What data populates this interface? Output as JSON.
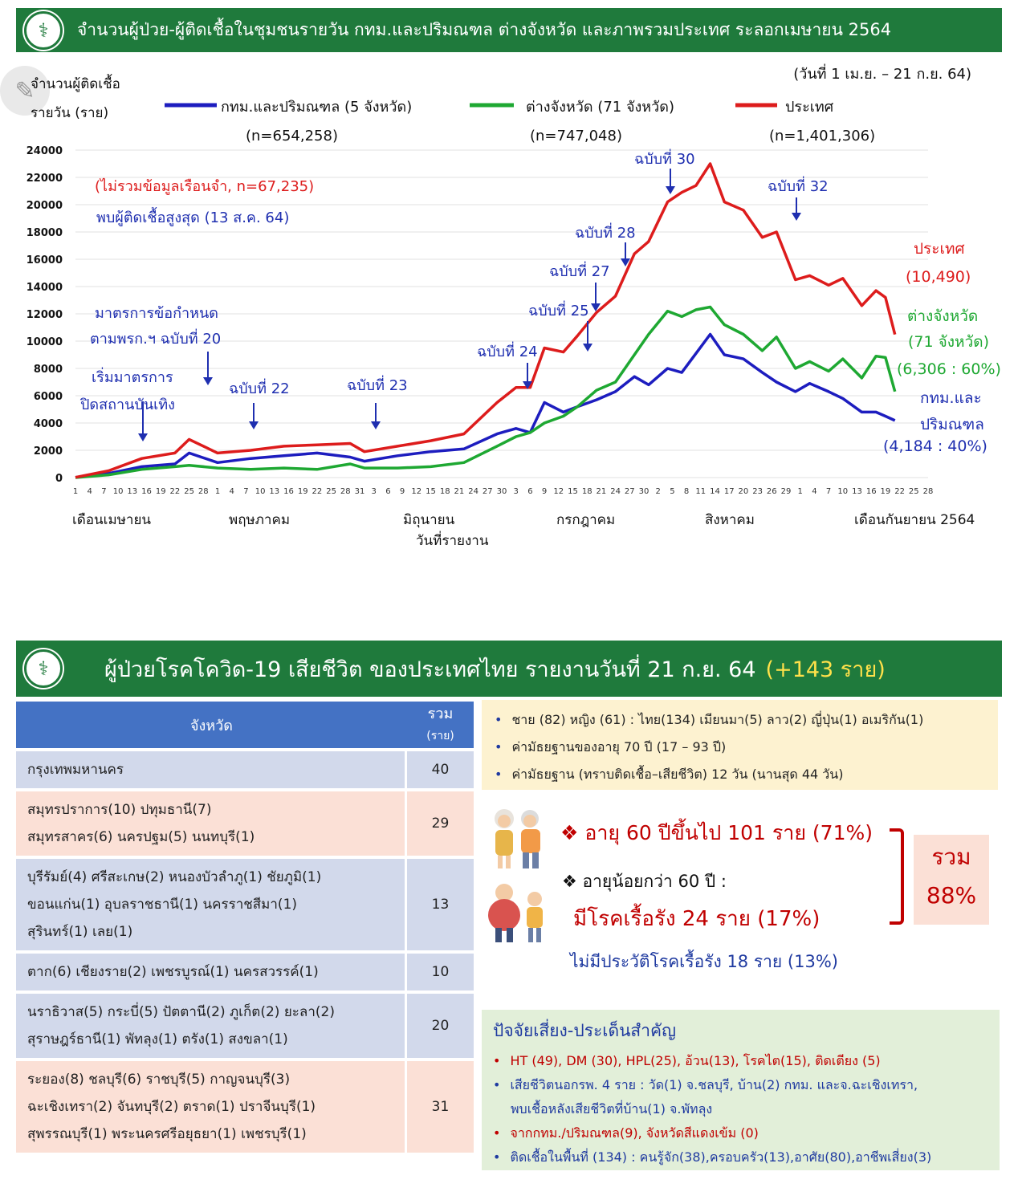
{
  "header1": {
    "title": "จำนวนผู้ป่วย-ผู้ติดเชื้อในชุมชนรายวัน กทม.และปริมณฑล ต่างจังหวัด และภาพรวมประเทศ ระลอกเมษายน 2564"
  },
  "header2": {
    "title": "ผู้ป่วยโรคโควิด-19 เสียชีวิต ของประเทศไทย รายงานวันที่ 21 ก.ย. 64",
    "highlight": "(+143 ราย)"
  },
  "logo_glyph": "⚕",
  "edit_glyph": "✎",
  "chart_data": {
    "type": "line",
    "ylabel_line1": "จำนวนผู้ติดเชื้อ",
    "ylabel_line2": "รายวัน (ราย)",
    "xlabel": "วันที่รายงาน",
    "date_range": "(วันที่ 1 เม.ย. – 21 ก.ย. 64)",
    "ylim": [
      0,
      24000
    ],
    "yticks": [
      0,
      2000,
      4000,
      6000,
      8000,
      10000,
      12000,
      14000,
      16000,
      18000,
      20000,
      22000,
      24000
    ],
    "x_range": [
      "2021-04-01",
      "2021-09-28"
    ],
    "x_tick_labels": [
      "1",
      "4",
      "7",
      "10",
      "13",
      "16",
      "19",
      "22",
      "25",
      "28",
      "1",
      "4",
      "7",
      "10",
      "13",
      "16",
      "19",
      "22",
      "25",
      "28",
      "31",
      "3",
      "6",
      "9",
      "12",
      "15",
      "18",
      "21",
      "24",
      "27",
      "30",
      "3",
      "6",
      "9",
      "12",
      "15",
      "18",
      "21",
      "24",
      "27",
      "30",
      "2",
      "5",
      "8",
      "11",
      "14",
      "17",
      "20",
      "23",
      "26",
      "29",
      "1",
      "4",
      "7",
      "10",
      "13",
      "16",
      "19",
      "22",
      "25",
      "28"
    ],
    "month_labels": [
      "เดือนเมษายน",
      "พฤษภาคม",
      "มิถุนายน",
      "กรกฎาคม",
      "สิงหาคม",
      "เดือนกันยายน 2564"
    ],
    "x": [
      "2021-04-01",
      "2021-04-08",
      "2021-04-15",
      "2021-04-22",
      "2021-04-25",
      "2021-05-01",
      "2021-05-08",
      "2021-05-15",
      "2021-05-22",
      "2021-05-29",
      "2021-06-01",
      "2021-06-08",
      "2021-06-15",
      "2021-06-22",
      "2021-06-29",
      "2021-07-03",
      "2021-07-06",
      "2021-07-09",
      "2021-07-13",
      "2021-07-16",
      "2021-07-20",
      "2021-07-24",
      "2021-07-28",
      "2021-07-31",
      "2021-08-04",
      "2021-08-07",
      "2021-08-10",
      "2021-08-13",
      "2021-08-16",
      "2021-08-20",
      "2021-08-24",
      "2021-08-27",
      "2021-08-31",
      "2021-09-03",
      "2021-09-07",
      "2021-09-10",
      "2021-09-14",
      "2021-09-17",
      "2021-09-19",
      "2021-09-21"
    ],
    "series": [
      {
        "name": "กทม.และปริมณฑล (5 จังหวัด)",
        "n_label": "(n=654,258)",
        "color": "#1d1dbf",
        "values": [
          20,
          300,
          800,
          1000,
          1800,
          1100,
          1400,
          1600,
          1800,
          1500,
          1200,
          1600,
          1900,
          2100,
          3200,
          3600,
          3300,
          5500,
          4800,
          5200,
          5700,
          6300,
          7400,
          6800,
          8000,
          7700,
          9100,
          10500,
          9000,
          8700,
          7700,
          7000,
          6300,
          6900,
          6300,
          5800,
          4800,
          4800,
          4500,
          4184
        ]
      },
      {
        "name": "ต่างจังหวัด (71 จังหวัด)",
        "n_label": "(n=747,048)",
        "color": "#1ea832",
        "values": [
          0,
          200,
          600,
          800,
          900,
          700,
          600,
          700,
          600,
          1000,
          700,
          700,
          800,
          1100,
          2300,
          3000,
          3300,
          4000,
          4500,
          5200,
          6400,
          7000,
          9000,
          10500,
          12200,
          11800,
          12300,
          12500,
          11200,
          10500,
          9300,
          10300,
          8000,
          8500,
          7800,
          8700,
          7300,
          8900,
          8800,
          6306
        ]
      },
      {
        "name": "ประเทศ",
        "n_label": "(n=1,401,306)",
        "color": "#dd1c1c",
        "values": [
          20,
          500,
          1400,
          1800,
          2800,
          1800,
          2000,
          2300,
          2400,
          2500,
          1900,
          2300,
          2700,
          3200,
          5500,
          6600,
          6600,
          9500,
          9200,
          10400,
          12100,
          13300,
          16400,
          17300,
          20200,
          20900,
          21400,
          23000,
          20200,
          19600,
          17600,
          18000,
          14500,
          14800,
          14100,
          14600,
          12600,
          13700,
          13200,
          10490
        ]
      }
    ],
    "annotations": [
      {
        "text": "(ไม่รวมข้อมูลเรือนจำ, n=67,235)",
        "color": "red"
      },
      {
        "text": "พบผู้ติดเชื้อสูงสุด (13 ส.ค. 64)",
        "color": "blue"
      },
      {
        "text": "มาตรการข้อกำหนด",
        "color": "blue"
      },
      {
        "text": "ตามพรก.ฯ ฉบับที่ 20",
        "color": "blue"
      },
      {
        "text": "เริ่มมาตรการ",
        "color": "blue"
      },
      {
        "text": "ปิดสถานบันเทิง",
        "color": "blue"
      },
      {
        "text": "ฉบับที่ 22",
        "color": "blue"
      },
      {
        "text": "ฉบับที่ 23",
        "color": "blue"
      },
      {
        "text": "ฉบับที่ 24",
        "color": "blue"
      },
      {
        "text": "ฉบับที่ 25",
        "color": "blue"
      },
      {
        "text": "ฉบับที่ 27",
        "color": "blue"
      },
      {
        "text": "ฉบับที่ 28",
        "color": "blue"
      },
      {
        "text": "ฉบับที่ 30",
        "color": "blue"
      },
      {
        "text": "ฉบับที่ 32",
        "color": "blue"
      }
    ],
    "end_labels": [
      {
        "text": "ประเทศ",
        "color": "red"
      },
      {
        "text": "(10,490)",
        "color": "red"
      },
      {
        "text": "ต่างจังหวัด",
        "color": "green"
      },
      {
        "text": "(71 จังหวัด)",
        "color": "green"
      },
      {
        "text": "(6,306 : 60%)",
        "color": "green"
      },
      {
        "text": "กทม.และ",
        "color": "blue"
      },
      {
        "text": "ปริมณฑล",
        "color": "blue"
      },
      {
        "text": "(4,184 : 40%)",
        "color": "blue"
      }
    ]
  },
  "table": {
    "header_province": "จังหวัด",
    "header_total": "รวม",
    "header_unit": "(ราย)",
    "rows": [
      {
        "lines": [
          "กรุงเทพมหานคร"
        ],
        "count": "40",
        "style": "blue"
      },
      {
        "lines": [
          "สมุทรปราการ(10) ปทุมธานี(7)",
          "สมุทรสาคร(6) นครปฐม(5) นนทบุรี(1)"
        ],
        "count": "29",
        "style": "pink"
      },
      {
        "lines": [
          "บุรีรัมย์(4) ศรีสะเกษ(2) หนองบัวลำภู(1) ชัยภูมิ(1)",
          "ขอนแก่น(1) อุบลราชธานี(1) นครราชสีมา(1)",
          "สุรินทร์(1) เลย(1)"
        ],
        "count": "13",
        "style": "blue"
      },
      {
        "lines": [
          "ตาก(6) เชียงราย(2) เพชรบูรณ์(1) นครสวรรค์(1)"
        ],
        "count": "10",
        "style": "blue"
      },
      {
        "lines": [
          "นราธิวาส(5) กระบี่(5) ปัตตานี(2) ภูเก็ต(2) ยะลา(2)",
          "สุราษฎร์ธานี(1) พัทลุง(1) ตรัง(1) สงขลา(1)"
        ],
        "count": "20",
        "style": "blue"
      },
      {
        "lines": [
          "ระยอง(8) ชลบุรี(6) ราชบุรี(5) กาญจนบุรี(3)",
          "ฉะเชิงเทรา(2) จันทบุรี(2) ตราด(1) ปราจีนบุรี(1)",
          "สุพรรณบุรี(1) พระนครศรีอยุธยา(1) เพชรบุรี(1)"
        ],
        "count": "31",
        "style": "pink"
      }
    ]
  },
  "info": {
    "items": [
      "ชาย (82) หญิง (61) : ไทย(134) เมียนมา(5) ลาว(2) ญี่ปุ่น(1) อเมริกัน(1)",
      "ค่ามัธยฐานของอายุ 70 ปี (17 – 93 ปี)",
      "ค่ามัธยฐาน (ทราบติดเชื้อ–เสียชีวิต) 12 วัน (นานสุด 44 วัน)"
    ]
  },
  "age": {
    "over60": "❖ อายุ 60 ปีขึ้นไป 101 ราย (71%)",
    "under60": "❖ อายุน้อยกว่า 60 ปี :",
    "chronic": "มีโรคเรื้อรัง 24 ราย (17%)",
    "no_chronic": "ไม่มีประวัติโรคเรื้อรัง 18 ราย (13%)",
    "sum_label": "รวม",
    "sum_value": "88%"
  },
  "risk": {
    "title": "ปัจจัยเสี่ยง-ประเด็นสำคัญ",
    "items": [
      {
        "text": "HT (49), DM (30), HPL(25), อ้วน(13), โรคไต(15), ติดเตียง (5)",
        "cont": "",
        "color": "r"
      },
      {
        "text": "เสียชีวิตนอกรพ. 4 ราย : วัด(1) จ.ชลบุรี, บ้าน(2) กทม. และจ.ฉะเชิงเทรา,",
        "cont": "พบเชื้อหลังเสียชีวิตที่บ้าน(1) จ.พัทลุง",
        "color": "b"
      },
      {
        "text": "จากกทม./ปริมณฑล(9), จังหวัดสีแดงเข้ม (0)",
        "cont": "",
        "color": "r"
      },
      {
        "text": "ติดเชื้อในพื้นที่ (134) : คนรู้จัก(38),ครอบครัว(13),อาศัย(80),อาชีพเสี่ยง(3)",
        "cont": "",
        "color": "b"
      }
    ]
  }
}
